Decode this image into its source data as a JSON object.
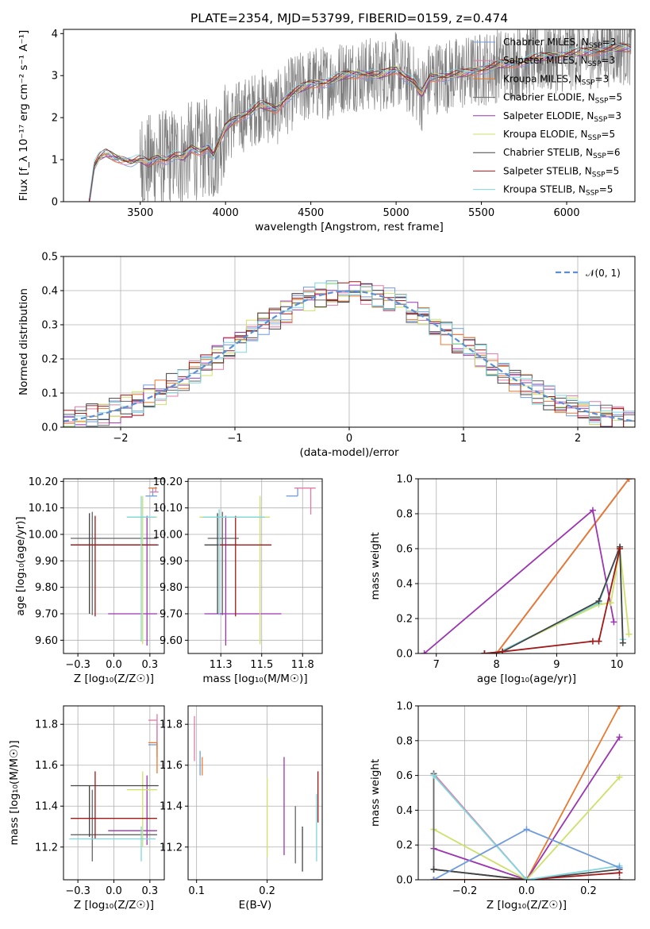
{
  "figure": {
    "title": "PLATE=2354, MJD=53799, FIBERID=0159, z=0.474"
  },
  "colors": {
    "Chabrier MILES": "#6f9bdc",
    "Salpeter MILES": "#e07aa6",
    "Kroupa MILES": "#e8792f",
    "Chabrier ELODIE": "#666666",
    "Salpeter ELODIE": "#9b35b0",
    "Kroupa ELODIE": "#cfe06a",
    "Chabrier STELIB": "#444444",
    "Salpeter STELIB": "#a01818",
    "Kroupa STELIB": "#7ed7df",
    "data": "#808080",
    "normal": "#5a8fd6"
  },
  "chart_data": [
    {
      "id": "spectrum",
      "type": "line",
      "xlabel": "wavelength [Angstrom, rest frame]",
      "ylabel": "Flux [f_λ 10⁻¹⁷ erg cm⁻² s⁻¹ A⁻¹]",
      "xlim": [
        3050,
        6400
      ],
      "ylim": [
        0,
        4.1
      ],
      "xticks": [
        3500,
        4000,
        4500,
        5000,
        5500,
        6000
      ],
      "yticks": [
        0,
        1,
        2,
        3,
        4
      ],
      "legend_position": "right",
      "legend": [
        "Chabrier MILES, N_SSP=3",
        "Salpeter MILES, N_SSP=3",
        "Kroupa MILES, N_SSP=3",
        "Chabrier ELODIE, N_SSP=5",
        "Salpeter ELODIE, N_SSP=3",
        "Kroupa ELODIE, N_SSP=5",
        "Chabrier STELIB, N_SSP=6",
        "Salpeter STELIB, N_SSP=5",
        "Kroupa STELIB, N_SSP=5"
      ],
      "legend_colors": [
        "#6f9bdc",
        "#e07aa6",
        "#e8792f",
        "#666666",
        "#9b35b0",
        "#cfe06a",
        "#444444",
        "#a01818",
        "#7ed7df"
      ],
      "model_continuum": {
        "x": [
          3200,
          3230,
          3260,
          3300,
          3350,
          3400,
          3450,
          3500,
          3550,
          3600,
          3650,
          3700,
          3750,
          3800,
          3850,
          3900,
          3930,
          3960,
          4000,
          4050,
          4100,
          4150,
          4200,
          4250,
          4300,
          4350,
          4400,
          4450,
          4500,
          4600,
          4700,
          4800,
          4900,
          5000,
          5100,
          5150,
          5200,
          5300,
          5400,
          5500,
          5600,
          5700,
          5800,
          5900,
          6000,
          6100,
          6200,
          6300
        ],
        "y": [
          0.0,
          0.85,
          1.05,
          1.15,
          1.05,
          1.0,
          0.95,
          1.0,
          0.9,
          1.05,
          1.0,
          1.1,
          1.05,
          1.25,
          1.2,
          1.3,
          1.1,
          1.4,
          1.75,
          1.95,
          2.05,
          2.15,
          2.3,
          2.25,
          2.2,
          2.45,
          2.6,
          2.7,
          2.8,
          2.85,
          3.0,
          3.05,
          3.0,
          3.15,
          2.85,
          2.55,
          2.95,
          3.0,
          3.05,
          3.15,
          3.25,
          3.3,
          3.4,
          3.45,
          3.5,
          3.55,
          3.6,
          3.65
        ]
      },
      "data_noise_start": 3500
    },
    {
      "id": "residuals",
      "type": "line",
      "xlabel": "(data-model)/error",
      "ylabel": "Normed distribution",
      "xlim": [
        -2.5,
        2.5
      ],
      "ylim": [
        0,
        0.5
      ],
      "xticks": [
        -2,
        -1,
        0,
        1,
        2
      ],
      "yticks": [
        0.0,
        0.1,
        0.2,
        0.3,
        0.4,
        0.5
      ],
      "legend_position": "top-right",
      "legend": [
        "𝒩(0, 1)"
      ],
      "series_normal": {
        "name": "𝒩(0, 1)",
        "mean": 0,
        "sigma": 1
      }
    },
    {
      "id": "age_vs_Z",
      "type": "scatter",
      "xlabel": "Z [log₁₀(Z/Z☉)]",
      "ylabel": "age [log₁₀(age/yr)]",
      "xlim": [
        -0.35,
        0.35
      ],
      "ylim": [
        9.55,
        10.21
      ],
      "xticks": [
        -0.25,
        0.0,
        0.25
      ],
      "yticks": [
        9.6,
        9.7,
        9.8,
        9.9,
        10.0,
        10.1,
        10.2
      ],
      "errorbars": [
        {
          "c": "#6f9bdc",
          "x": 0.27,
          "xerr": [
            0.05,
            0.03
          ],
          "y": 10.145,
          "yerr": [
            0.0,
            0.03
          ]
        },
        {
          "c": "#e07aa6",
          "x": 0.29,
          "xerr": [
            0.04,
            0.02
          ],
          "y": 10.16,
          "yerr": [
            0.0,
            0.02
          ]
        },
        {
          "c": "#e8792f",
          "x": 0.3,
          "xerr": [
            0.06,
            0.0
          ],
          "y": 10.175,
          "yerr": [
            0.0,
            0.0
          ]
        },
        {
          "c": "#666666",
          "x": -0.15,
          "xerr": [
            0.15,
            0.45
          ],
          "y": 9.985,
          "yerr": [
            0.29,
            0.1
          ]
        },
        {
          "c": "#9b35b0",
          "x": 0.23,
          "xerr": [
            0.27,
            0.07
          ],
          "y": 9.7,
          "yerr": [
            0.12,
            0.37
          ]
        },
        {
          "c": "#cfe06a",
          "x": 0.2,
          "xerr": [
            0.11,
            0.1
          ],
          "y": 10.065,
          "yerr": [
            0.48,
            0.08
          ]
        },
        {
          "c": "#444444",
          "x": -0.17,
          "xerr": [
            0.13,
            0.48
          ],
          "y": 9.96,
          "yerr": [
            0.26,
            0.12
          ]
        },
        {
          "c": "#a01818",
          "x": -0.13,
          "xerr": [
            0.17,
            0.43
          ],
          "y": 9.96,
          "yerr": [
            0.27,
            0.11
          ]
        },
        {
          "c": "#7ed7df",
          "x": 0.19,
          "xerr": [
            0.1,
            0.1
          ],
          "y": 10.065,
          "yerr": [
            0.47,
            0.08
          ]
        }
      ]
    },
    {
      "id": "age_vs_mass",
      "type": "scatter",
      "xlabel": "mass [log₁₀(M/M☉)]",
      "ylabel": "",
      "xlim": [
        11.05,
        11.87
      ],
      "ylim": [
        9.55,
        10.21
      ],
      "xticks": [
        11.25,
        11.5,
        11.75
      ],
      "yticks": [
        9.6,
        9.7,
        9.8,
        9.9,
        10.0,
        10.1,
        10.2
      ],
      "errorbars": [
        {
          "c": "#6f9bdc",
          "x": 11.72,
          "xerr": [
            0.07,
            0.0
          ],
          "y": 10.145,
          "yerr": [
            0.0,
            0.03
          ]
        },
        {
          "c": "#e07aa6",
          "x": 11.8,
          "xerr": [
            0.1,
            0.03
          ],
          "y": 10.175,
          "yerr": [
            0.1,
            0.0
          ]
        },
        {
          "c": "#e8792f",
          "x": 11.7,
          "xerr": [
            0.0,
            0.0
          ],
          "y": 10.175,
          "yerr": [
            0.0,
            0.0
          ]
        },
        {
          "c": "#666666",
          "x": 11.26,
          "xerr": [
            0.09,
            0.1
          ],
          "y": 9.985,
          "yerr": [
            0.29,
            0.1
          ]
        },
        {
          "c": "#9b35b0",
          "x": 11.28,
          "xerr": [
            0.13,
            0.34
          ],
          "y": 9.7,
          "yerr": [
            0.12,
            0.37
          ]
        },
        {
          "c": "#cfe06a",
          "x": 11.49,
          "xerr": [
            0.37,
            0.06
          ],
          "y": 10.065,
          "yerr": [
            0.48,
            0.08
          ]
        },
        {
          "c": "#444444",
          "x": 11.23,
          "xerr": [
            0.08,
            0.12
          ],
          "y": 9.96,
          "yerr": [
            0.26,
            0.12
          ]
        },
        {
          "c": "#a01818",
          "x": 11.34,
          "xerr": [
            0.1,
            0.22
          ],
          "y": 9.96,
          "yerr": [
            0.27,
            0.11
          ]
        },
        {
          "c": "#7ed7df",
          "x": 11.24,
          "xerr": [
            0.1,
            0.28
          ],
          "y": 10.065,
          "yerr": [
            0.37,
            0.03
          ]
        }
      ]
    },
    {
      "id": "weight_vs_age",
      "type": "line",
      "xlabel": "age [log₁₀(age/yr)]",
      "ylabel": "mass weight",
      "xlim": [
        6.7,
        10.3
      ],
      "ylim": [
        0,
        1
      ],
      "xticks": [
        7,
        8,
        9,
        10
      ],
      "yticks": [
        0.0,
        0.2,
        0.4,
        0.6,
        0.8,
        1.0
      ],
      "series": [
        {
          "c": "#6f9bdc",
          "x": [
            7.8,
            8.0,
            10.2
          ],
          "y": [
            0.0,
            0.0,
            1.0
          ]
        },
        {
          "c": "#e07aa6",
          "x": [
            7.8,
            8.0,
            10.2
          ],
          "y": [
            0.0,
            0.0,
            1.0
          ]
        },
        {
          "c": "#e8792f",
          "x": [
            8.0,
            10.2
          ],
          "y": [
            0.0,
            1.0
          ]
        },
        {
          "c": "#9b35b0",
          "x": [
            6.8,
            9.6,
            9.95
          ],
          "y": [
            0.0,
            0.82,
            0.18
          ]
        },
        {
          "c": "#cfe06a",
          "x": [
            7.8,
            8.0,
            9.7,
            9.9,
            10.05,
            10.2
          ],
          "y": [
            0.0,
            0.0,
            0.28,
            0.29,
            0.6,
            0.11
          ]
        },
        {
          "c": "#7ed7df",
          "x": [
            7.8,
            8.0,
            9.7,
            10.05,
            10.1
          ],
          "y": [
            0.0,
            0.0,
            0.29,
            0.61,
            0.08
          ]
        },
        {
          "c": "#444444",
          "x": [
            7.8,
            8.1,
            9.7,
            10.05,
            10.1
          ],
          "y": [
            0.0,
            0.01,
            0.3,
            0.61,
            0.06
          ]
        },
        {
          "c": "#a01818",
          "x": [
            7.8,
            8.1,
            9.6,
            9.7,
            10.05
          ],
          "y": [
            0.0,
            0.01,
            0.07,
            0.07,
            0.6
          ]
        }
      ]
    },
    {
      "id": "mass_vs_Z",
      "type": "scatter",
      "xlabel": "Z [log₁₀(Z/Z☉)]",
      "ylabel": "mass [log₁₀(M/M☉)]",
      "xlim": [
        -0.35,
        0.35
      ],
      "ylim": [
        11.04,
        11.89
      ],
      "xticks": [
        -0.25,
        0.0,
        0.25
      ],
      "yticks": [
        11.2,
        11.4,
        11.6,
        11.8
      ],
      "errorbars": [
        {
          "c": "#6f9bdc",
          "x": 0.3,
          "xerr": [
            0.06,
            0.0
          ],
          "y": 11.7,
          "yerr": [
            0.02,
            0.1
          ]
        },
        {
          "c": "#e07aa6",
          "x": 0.3,
          "xerr": [
            0.06,
            0.0
          ],
          "y": 11.82,
          "yerr": [
            0.18,
            0.03
          ]
        },
        {
          "c": "#e8792f",
          "x": 0.3,
          "xerr": [
            0.06,
            0.0
          ],
          "y": 11.71,
          "yerr": [
            0.15,
            0.0
          ]
        },
        {
          "c": "#666666",
          "x": -0.15,
          "xerr": [
            0.15,
            0.45
          ],
          "y": 11.26,
          "yerr": [
            0.13,
            0.22
          ]
        },
        {
          "c": "#9b35b0",
          "x": 0.23,
          "xerr": [
            0.27,
            0.07
          ],
          "y": 11.28,
          "yerr": [
            0.07,
            0.27
          ]
        },
        {
          "c": "#cfe06a",
          "x": 0.2,
          "xerr": [
            0.11,
            0.1
          ],
          "y": 11.48,
          "yerr": [
            0.28,
            0.09
          ]
        },
        {
          "c": "#444444",
          "x": -0.17,
          "xerr": [
            0.13,
            0.48
          ],
          "y": 11.5,
          "yerr": [
            0.25,
            0.0
          ]
        },
        {
          "c": "#a01818",
          "x": -0.13,
          "xerr": [
            0.17,
            0.43
          ],
          "y": 11.34,
          "yerr": [
            0.1,
            0.23
          ]
        },
        {
          "c": "#7ed7df",
          "x": 0.19,
          "xerr": [
            0.5,
            0.1
          ],
          "y": 11.24,
          "yerr": [
            0.11,
            0.06
          ]
        }
      ]
    },
    {
      "id": "mass_vs_EBV",
      "type": "scatter",
      "xlabel": "E(B-V)",
      "ylabel": "",
      "xlim": [
        0.088,
        0.278
      ],
      "ylim": [
        11.04,
        11.89
      ],
      "xticks": [
        0.1,
        0.2
      ],
      "yticks": [
        11.2,
        11.4,
        11.6,
        11.8
      ],
      "errorbars": [
        {
          "c": "#6f9bdc",
          "x": 0.105,
          "xerr": [
            0,
            0
          ],
          "y": 11.65,
          "yerr": [
            0.1,
            0.02
          ]
        },
        {
          "c": "#e07aa6",
          "x": 0.097,
          "xerr": [
            0,
            0
          ],
          "y": 11.7,
          "yerr": [
            0.08,
            0.14
          ]
        },
        {
          "c": "#e8792f",
          "x": 0.108,
          "xerr": [
            0,
            0
          ],
          "y": 11.6,
          "yerr": [
            0.05,
            0.04
          ]
        },
        {
          "c": "#666666",
          "x": 0.24,
          "xerr": [
            0,
            0
          ],
          "y": 11.4,
          "yerr": [
            0.28,
            0.0
          ]
        },
        {
          "c": "#9b35b0",
          "x": 0.224,
          "xerr": [
            0,
            0
          ],
          "y": 11.4,
          "yerr": [
            0.24,
            0.24
          ]
        },
        {
          "c": "#cfe06a",
          "x": 0.2,
          "xerr": [
            0,
            0
          ],
          "y": 11.35,
          "yerr": [
            0.2,
            0.19
          ]
        },
        {
          "c": "#444444",
          "x": 0.25,
          "xerr": [
            0,
            0
          ],
          "y": 11.3,
          "yerr": [
            0.22,
            0.0
          ]
        },
        {
          "c": "#a01818",
          "x": 0.272,
          "xerr": [
            0,
            0
          ],
          "y": 11.47,
          "yerr": [
            0.15,
            0.1
          ]
        },
        {
          "c": "#7ed7df",
          "x": 0.27,
          "xerr": [
            0,
            0
          ],
          "y": 11.34,
          "yerr": [
            0.21,
            0.12
          ]
        }
      ]
    },
    {
      "id": "weight_vs_Z",
      "type": "line",
      "xlabel": "Z [log₁₀(Z/Z☉)]",
      "ylabel": "mass weight",
      "xlim": [
        -0.35,
        0.35
      ],
      "ylim": [
        0,
        1
      ],
      "xticks": [
        -0.2,
        0.0,
        0.2
      ],
      "yticks": [
        0.0,
        0.2,
        0.4,
        0.6,
        0.8,
        1.0
      ],
      "series": [
        {
          "c": "#e8792f",
          "x": [
            -0.3,
            0.0,
            0.3
          ],
          "y": [
            0.0,
            0.0,
            1.0
          ]
        },
        {
          "c": "#e07aa6",
          "x": [
            -0.3,
            0.0,
            0.3
          ],
          "y": [
            0.61,
            0.0,
            0.0
          ]
        },
        {
          "c": "#9b35b0",
          "x": [
            -0.3,
            0.0,
            0.3
          ],
          "y": [
            0.18,
            0.0,
            0.82
          ]
        },
        {
          "c": "#cfe06a",
          "x": [
            -0.3,
            0.0,
            0.3
          ],
          "y": [
            0.29,
            0.0,
            0.59
          ]
        },
        {
          "c": "#666666",
          "x": [
            -0.3,
            -0.3,
            0.0,
            0.3
          ],
          "y": [
            0.61,
            0.06,
            0.0,
            0.0
          ]
        },
        {
          "c": "#444444",
          "x": [
            -0.3,
            0.0,
            0.3
          ],
          "y": [
            0.06,
            0.0,
            0.06
          ]
        },
        {
          "c": "#a01818",
          "x": [
            -0.3,
            0.0,
            0.3
          ],
          "y": [
            0.0,
            0.0,
            0.04
          ]
        },
        {
          "c": "#7ed7df",
          "x": [
            -0.3,
            0.0,
            0.3
          ],
          "y": [
            0.6,
            0.0,
            0.08
          ]
        },
        {
          "c": "#6f9bdc",
          "x": [
            -0.3,
            0.0,
            0.3
          ],
          "y": [
            0.0,
            0.29,
            0.07
          ]
        }
      ]
    }
  ]
}
